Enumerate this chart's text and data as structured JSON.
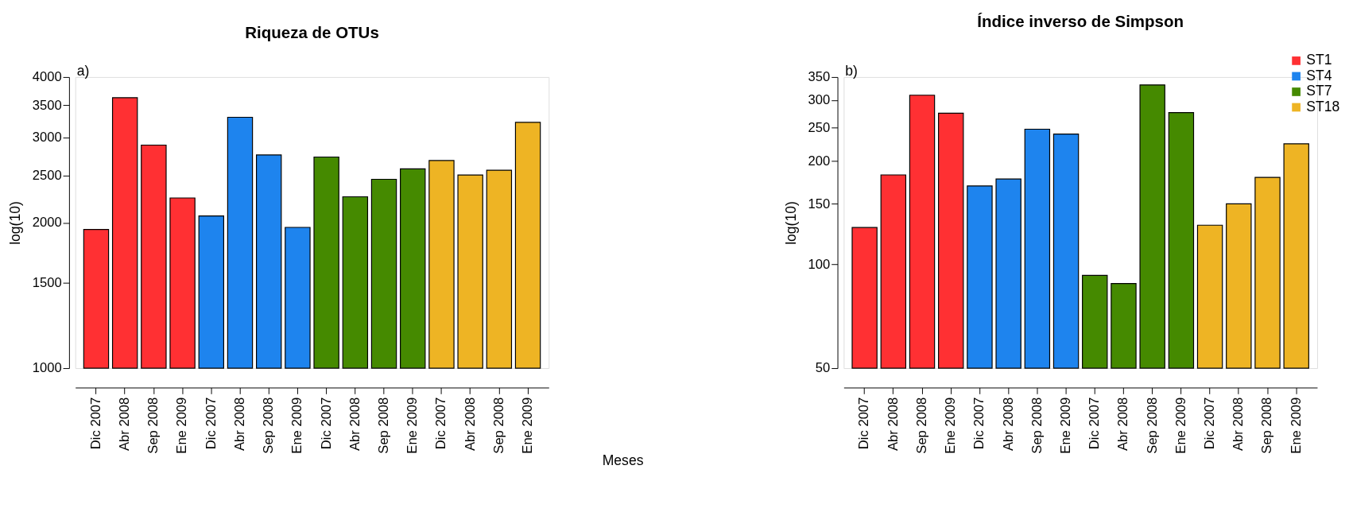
{
  "chart_data": [
    {
      "type": "bar",
      "title": "Riqueza de OTUs",
      "ylabel": "log(10)",
      "xlabel": "Meses",
      "annotations": [
        "a)"
      ],
      "log": true,
      "grid": false,
      "legend": false,
      "categories": [
        "Dic 2007",
        "Abr 2008",
        "Sep 2008",
        "Ene 2009",
        "Dic 2007",
        "Abr 2008",
        "Sep 2008",
        "Ene 2009",
        "Dic 2007",
        "Abr 2008",
        "Sep 2008",
        "Ene 2009",
        "Dic 2007",
        "Abr 2008",
        "Sep 2008",
        "Ene 2009"
      ],
      "values": [
        1936,
        3625,
        2893,
        2249,
        2065,
        3303,
        2760,
        1955,
        2733,
        2262,
        2458,
        2583,
        2688,
        2509,
        2567,
        3224
      ],
      "colors": [
        "#ff3033",
        "#ff3033",
        "#ff3033",
        "#ff3033",
        "#1e84ee",
        "#1e84ee",
        "#1e84ee",
        "#1e84ee",
        "#458a00",
        "#458a00",
        "#458a00",
        "#458a00",
        "#eeb424",
        "#eeb424",
        "#eeb424",
        "#eeb424"
      ],
      "ylim": [
        1000,
        4000
      ],
      "yticks": [
        1000,
        1500,
        2000,
        2500,
        3000,
        3500,
        4000
      ]
    },
    {
      "type": "bar",
      "title": "Índice inverso de Simpson",
      "ylabel": "log(10)",
      "annotations": [
        "b)"
      ],
      "log": true,
      "grid": false,
      "legend": "top right",
      "categories": [
        "Dic 2007",
        "Abr 2008",
        "Sep 2008",
        "Ene 2009",
        "Dic 2007",
        "Abr 2008",
        "Sep 2008",
        "Ene 2009",
        "Dic 2007",
        "Abr 2008",
        "Sep 2008",
        "Ene 2009",
        "Dic 2007",
        "Abr 2008",
        "Sep 2008",
        "Ene 2009"
      ],
      "series": [
        {
          "name": "ST1",
          "color": "#ff3033",
          "values": [
            128,
            182,
            310,
            275,
            null,
            null,
            null,
            null,
            null,
            null,
            null,
            null,
            null,
            null,
            null,
            null
          ]
        },
        {
          "name": "ST4",
          "color": "#1e84ee",
          "values": [
            null,
            null,
            null,
            null,
            169,
            177,
            247,
            239,
            null,
            null,
            null,
            null,
            null,
            null,
            null,
            null
          ]
        },
        {
          "name": "ST7",
          "color": "#458a00",
          "values": [
            null,
            null,
            null,
            null,
            null,
            null,
            null,
            null,
            93,
            88,
            332,
            276,
            null,
            null,
            null,
            null
          ]
        },
        {
          "name": "ST18",
          "color": "#eeb424",
          "values": [
            null,
            null,
            null,
            null,
            null,
            null,
            null,
            null,
            null,
            null,
            null,
            null,
            130,
            150,
            179,
            224
          ]
        }
      ],
      "ylim": [
        50,
        350
      ],
      "yticks": [
        50,
        100,
        150,
        200,
        250,
        300,
        350
      ]
    }
  ]
}
